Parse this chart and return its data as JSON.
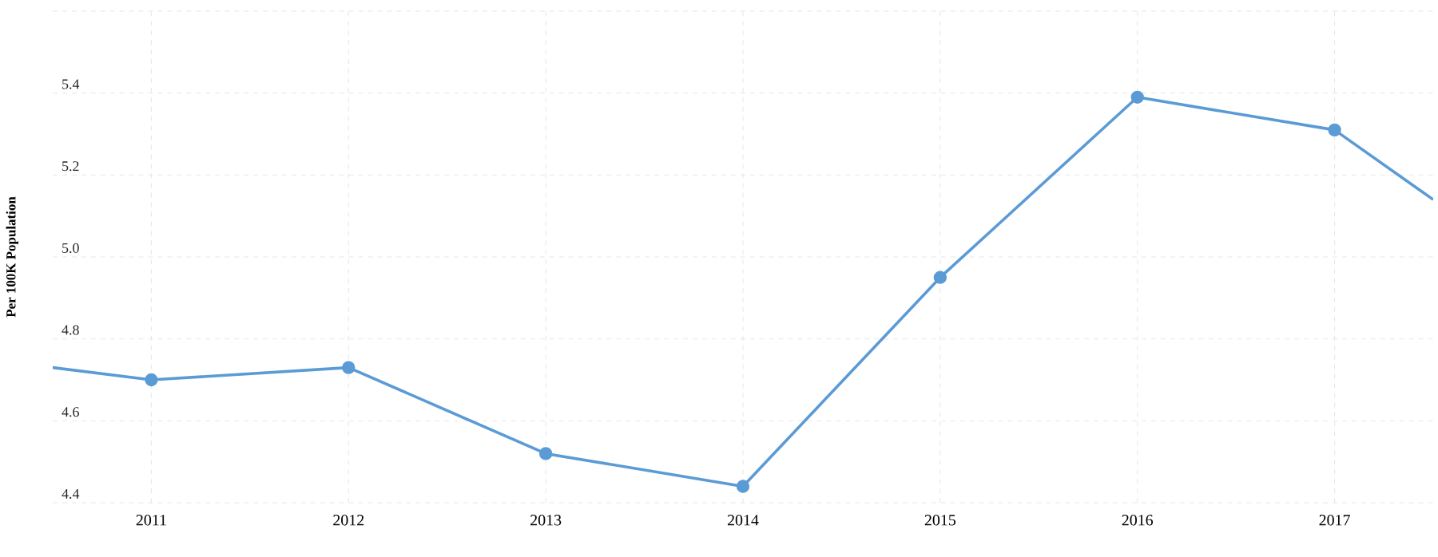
{
  "chart_data": {
    "type": "line",
    "ylabel": "**Per 100K Population**",
    "x": [
      2010.5,
      2011,
      2012,
      2013,
      2014,
      2015,
      2016,
      2017,
      2017.5
    ],
    "series": [
      {
        "color": "#5b9bd5",
        "values": [
          4.73,
          4.7,
          4.73,
          4.52,
          4.44,
          4.95,
          5.39,
          5.31,
          5.14
        ]
      }
    ],
    "xlim": [
      2010.5,
      2017.5
    ],
    "xticks": [
      2011,
      2012,
      2013,
      2014,
      2015,
      2016,
      2017
    ],
    "ylim": [
      4.4,
      5.6
    ],
    "yticks": [
      4.4,
      4.6,
      4.8,
      {
        "value": 5.0,
        "label": "5.0"
      },
      5.2,
      5.4,
      {
        "value": 5.6,
        "label": null
      }
    ],
    "grid": true,
    "marker": "circle",
    "line_style": "solid"
  }
}
